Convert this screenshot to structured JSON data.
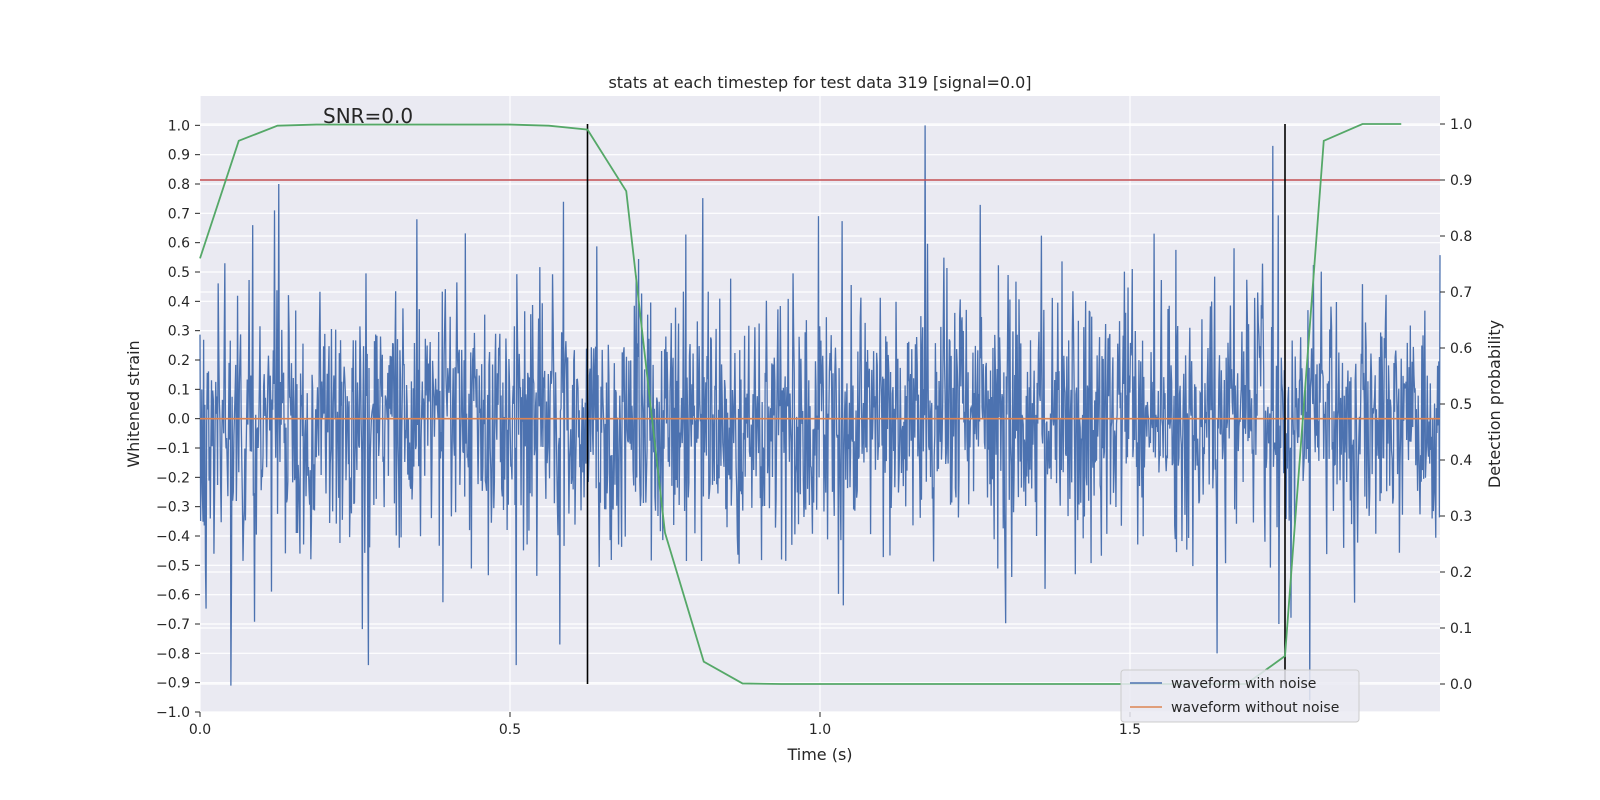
{
  "chart_data": {
    "type": "line",
    "title": "stats at each timestep for test data 319 [signal=0.0]",
    "xlabel": "Time (s)",
    "ylabel": "Whitened strain",
    "y2label": "Detection probability",
    "annotation": "SNR=0.0",
    "xlim": [
      0.0,
      2.0
    ],
    "ylim": [
      -1.0,
      1.1
    ],
    "y2lim": [
      -0.05,
      1.05
    ],
    "xticks": [
      0.0,
      0.5,
      1.0,
      1.5
    ],
    "xtick_labels": [
      "0.0",
      "0.5",
      "1.0",
      "1.5"
    ],
    "yticks": [
      -1.0,
      -0.9,
      -0.8,
      -0.7,
      -0.6,
      -0.5,
      -0.4,
      -0.3,
      -0.2,
      -0.1,
      0.0,
      0.1,
      0.2,
      0.3,
      0.4,
      0.5,
      0.6,
      0.7,
      0.8,
      0.9,
      1.0
    ],
    "ytick_labels": [
      "−1.0",
      "−0.9",
      "−0.8",
      "−0.7",
      "−0.6",
      "−0.5",
      "−0.4",
      "−0.3",
      "−0.2",
      "−0.1",
      "0.0",
      "0.1",
      "0.2",
      "0.3",
      "0.4",
      "0.5",
      "0.6",
      "0.7",
      "0.8",
      "0.9",
      "1.0"
    ],
    "y2ticks": [
      0.0,
      0.1,
      0.2,
      0.3,
      0.4,
      0.5,
      0.6,
      0.7,
      0.8,
      0.9,
      1.0
    ],
    "y2tick_labels": [
      "0.0",
      "0.1",
      "0.2",
      "0.3",
      "0.4",
      "0.5",
      "0.6",
      "0.7",
      "0.8",
      "0.9",
      "1.0"
    ],
    "legend": [
      "waveform with noise",
      "waveform without noise"
    ],
    "legend_loc": "lower-right",
    "series": [
      {
        "name": "waveform with noise",
        "axis": "left",
        "color": "#4c72b0",
        "style": "noise",
        "t_start": 0.0,
        "t_end": 2.0,
        "n_points": 2048,
        "seed": 319,
        "stdev": 0.22,
        "clip": [
          -0.91,
          1.0
        ],
        "spikes": [
          {
            "t": 0.05,
            "y": -0.91
          },
          {
            "t": 0.04,
            "y": 0.53
          },
          {
            "t": 0.085,
            "y": 0.66
          },
          {
            "t": 0.12,
            "y": 0.71
          },
          {
            "t": 0.127,
            "y": 0.8
          },
          {
            "t": 0.272,
            "y": -0.84
          },
          {
            "t": 0.35,
            "y": 0.68
          },
          {
            "t": 0.51,
            "y": -0.84
          },
          {
            "t": 0.58,
            "y": -0.77
          },
          {
            "t": 1.17,
            "y": 1.0
          },
          {
            "t": 1.64,
            "y": -0.8
          },
          {
            "t": 1.73,
            "y": 0.93
          },
          {
            "t": 1.74,
            "y": -0.7
          },
          {
            "t": 1.79,
            "y": -0.96
          }
        ]
      },
      {
        "name": "waveform without noise",
        "axis": "left",
        "color": "#dd8452",
        "x": [
          0.0,
          2.0
        ],
        "y": [
          0.0,
          0.0
        ]
      },
      {
        "name": "detection probability",
        "axis": "right",
        "color": "#55a868",
        "x": [
          0.0,
          0.0625,
          0.125,
          0.1875,
          0.25,
          0.3125,
          0.375,
          0.4375,
          0.5,
          0.5625,
          0.625,
          0.6875,
          0.75,
          0.8125,
          0.875,
          0.9375,
          1.0,
          1.0625,
          1.125,
          1.1875,
          1.25,
          1.3125,
          1.375,
          1.4375,
          1.5,
          1.5625,
          1.625,
          1.6875,
          1.75,
          1.8125,
          1.875,
          1.9375
        ],
        "y": [
          0.76,
          0.97,
          0.997,
          0.999,
          0.999,
          0.999,
          0.999,
          0.999,
          0.999,
          0.997,
          0.99,
          0.88,
          0.27,
          0.04,
          0.001,
          0.0,
          0.0,
          0.0,
          0.0,
          0.0,
          0.0,
          0.0,
          0.0,
          0.0,
          0.0,
          0.0,
          0.0,
          0.0,
          0.05,
          0.97,
          1.0,
          1.0
        ]
      }
    ],
    "threshold_line": {
      "axis": "right",
      "value": 0.9,
      "color": "#c44e52"
    },
    "vertical_markers": [
      {
        "t": 0.625,
        "ymin": 0.0,
        "ymax": 1.0,
        "color": "#000000"
      },
      {
        "t": 1.75,
        "ymin": 0.0,
        "ymax": 1.0,
        "color": "#000000"
      }
    ],
    "colors": {
      "background": "#eaeaf2",
      "grid": "#ffffff",
      "text": "#262626"
    }
  }
}
